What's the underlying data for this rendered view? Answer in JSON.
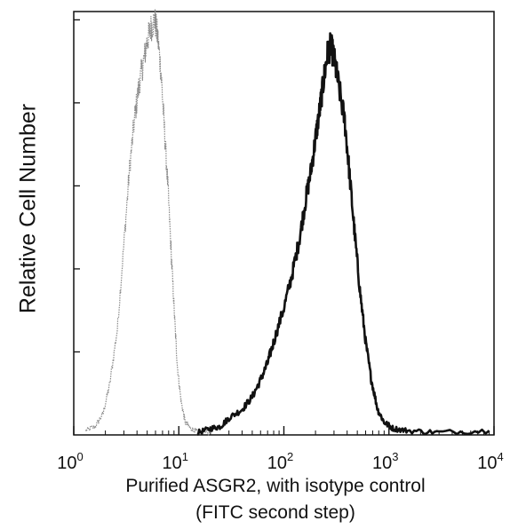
{
  "chart_data": {
    "type": "line",
    "xscale": "log",
    "xlim": [
      1,
      10000
    ],
    "ylim": [
      0,
      100
    ],
    "xlabel_line1": "Purified ASGR2, with isotype control",
    "xlabel_line2": "(FITC second step)",
    "ylabel": "Relative Cell Number",
    "x_ticks": [
      {
        "base": "10",
        "exp": "0",
        "value": 1
      },
      {
        "base": "10",
        "exp": "1",
        "value": 10
      },
      {
        "base": "10",
        "exp": "2",
        "value": 100
      },
      {
        "base": "10",
        "exp": "3",
        "value": 1000
      },
      {
        "base": "10",
        "exp": "4",
        "value": 10000
      }
    ],
    "y_tick_count": 5,
    "grid": false,
    "series": [
      {
        "style": "isotype-control-dotted",
        "color": "#8a8a8a",
        "points": [
          [
            1.3,
            1
          ],
          [
            1.6,
            2
          ],
          [
            1.9,
            5
          ],
          [
            2.2,
            12
          ],
          [
            2.6,
            25
          ],
          [
            3.0,
            45
          ],
          [
            3.4,
            63
          ],
          [
            3.8,
            75
          ],
          [
            4.2,
            83
          ],
          [
            4.6,
            88
          ],
          [
            5.0,
            93
          ],
          [
            5.4,
            96
          ],
          [
            5.9,
            98
          ],
          [
            6.3,
            94
          ],
          [
            6.8,
            85
          ],
          [
            7.3,
            72
          ],
          [
            7.9,
            58
          ],
          [
            8.5,
            42
          ],
          [
            9.1,
            28
          ],
          [
            9.7,
            16
          ],
          [
            10.5,
            8
          ],
          [
            11.5,
            3
          ],
          [
            13,
            1.5
          ],
          [
            15,
            0.8
          ],
          [
            20,
            0.5
          ]
        ]
      },
      {
        "style": "asgr2-solid",
        "color": "#111111",
        "points": [
          [
            15,
            0.5
          ],
          [
            20,
            1.5
          ],
          [
            25,
            2
          ],
          [
            30,
            4
          ],
          [
            40,
            6
          ],
          [
            50,
            9
          ],
          [
            60,
            13
          ],
          [
            70,
            17
          ],
          [
            80,
            22
          ],
          [
            100,
            30
          ],
          [
            120,
            38
          ],
          [
            140,
            46
          ],
          [
            160,
            55
          ],
          [
            180,
            62
          ],
          [
            200,
            70
          ],
          [
            220,
            77
          ],
          [
            240,
            84
          ],
          [
            260,
            90
          ],
          [
            280,
            92
          ],
          [
            300,
            89
          ],
          [
            330,
            83
          ],
          [
            380,
            74
          ],
          [
            420,
            62
          ],
          [
            470,
            48
          ],
          [
            530,
            34
          ],
          [
            600,
            22
          ],
          [
            680,
            13
          ],
          [
            780,
            6
          ],
          [
            900,
            3
          ],
          [
            1100,
            1.5
          ],
          [
            1500,
            1
          ],
          [
            3000,
            0.6
          ],
          [
            9000,
            1
          ]
        ]
      }
    ]
  }
}
